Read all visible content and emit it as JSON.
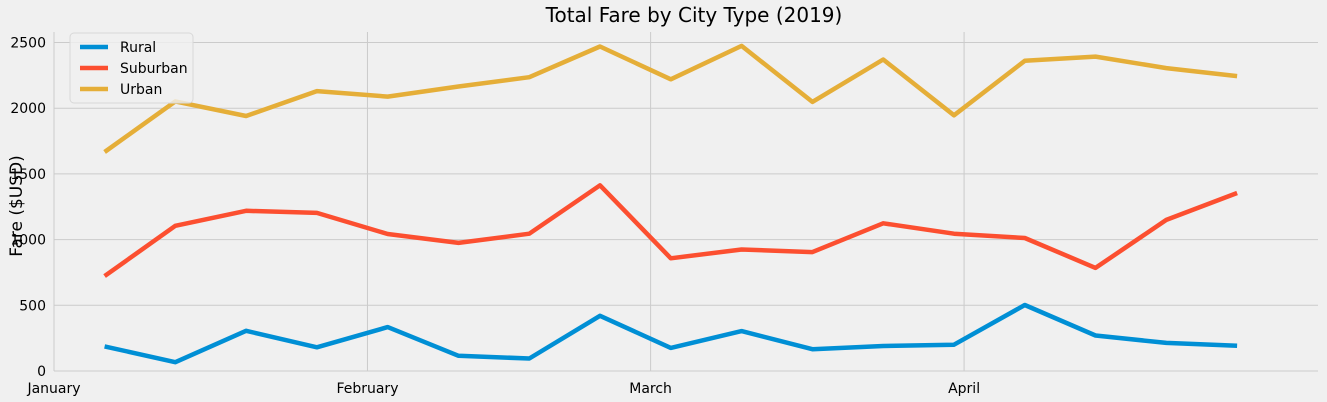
{
  "chart_data": {
    "type": "line",
    "title": "Total Fare by City Type (2019)",
    "xlabel": "",
    "ylabel": "Fare ($USD)",
    "x_start": "2019-01-01",
    "x_end": "2019-05-06",
    "x_ticks": [
      {
        "label": "January",
        "date": "2019-01-01"
      },
      {
        "label": "February",
        "date": "2019-02-01"
      },
      {
        "label": "March",
        "date": "2019-03-01"
      },
      {
        "label": "April",
        "date": "2019-04-01"
      }
    ],
    "x": [
      "2019-01-06",
      "2019-01-13",
      "2019-01-20",
      "2019-01-27",
      "2019-02-03",
      "2019-02-10",
      "2019-02-17",
      "2019-02-24",
      "2019-03-03",
      "2019-03-10",
      "2019-03-17",
      "2019-03-24",
      "2019-03-31",
      "2019-04-07",
      "2019-04-14",
      "2019-04-21",
      "2019-04-28"
    ],
    "ylim": [
      0,
      2580
    ],
    "y_ticks": [
      0,
      500,
      1000,
      1500,
      2000,
      2500
    ],
    "grid": true,
    "legend_position": "upper-left",
    "series": [
      {
        "name": "Rural",
        "color": "#008fd5",
        "values": [
          187,
          67,
          306,
          180,
          334,
          116,
          95,
          420,
          176,
          304,
          166,
          190,
          200,
          502,
          270,
          214,
          192
        ]
      },
      {
        "name": "Suburban",
        "color": "#fc4f30",
        "values": [
          722,
          1105,
          1219,
          1203,
          1043,
          975,
          1045,
          1413,
          858,
          925,
          905,
          1124,
          1045,
          1012,
          785,
          1150,
          1355
        ]
      },
      {
        "name": "Urban",
        "color": "#e5ae38",
        "values": [
          1667,
          2052,
          1941,
          2130,
          2088,
          2165,
          2236,
          2470,
          2220,
          2474,
          2048,
          2371,
          1946,
          2361,
          2393,
          2305,
          2244
        ]
      }
    ]
  }
}
